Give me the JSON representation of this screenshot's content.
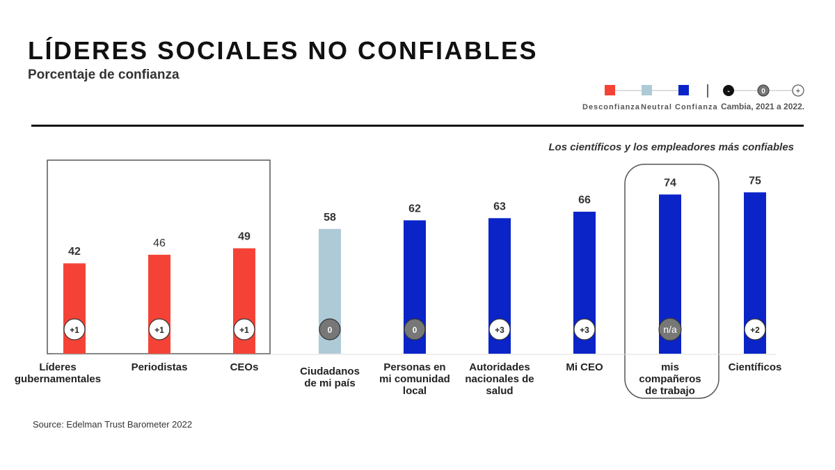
{
  "title": "LÍDERES SOCIALES NO CONFIABLES",
  "subtitle": "Porcentaje de confianza",
  "note": "Los científicos y los empleadores más confiables",
  "source": "Source: Edelman Trust Barometer 2022",
  "legend": {
    "distrust": "Desconfianza",
    "neutral": "Neutral",
    "trust": "Confianza",
    "change": "Cambia, 2021 a 2022.",
    "change_markers": [
      "-",
      "0",
      "+"
    ]
  },
  "colors": {
    "distrust": "#f44336",
    "neutral": "#aecad6",
    "trust": "#0a24c8",
    "zero_badge": "#777777"
  },
  "chart_data": {
    "type": "bar",
    "title": "LÍDERES SOCIALES NO CONFIABLES",
    "ylabel": "Porcentaje de confianza",
    "ylim": [
      0,
      100
    ],
    "grid": false,
    "legend_position": "top-right",
    "categories": [
      [
        "Líderes",
        "gubernamentales"
      ],
      [
        "Periodistas"
      ],
      [
        "CEOs"
      ],
      [
        "Ciudadanos",
        "de mi país"
      ],
      [
        "Personas en",
        "mi comunidad",
        "local"
      ],
      [
        "Autoridades",
        "nacionales de",
        "salud"
      ],
      [
        "Mi CEO"
      ],
      [
        "mis",
        "compañeros",
        "de trabajo"
      ],
      [
        "Científicos"
      ]
    ],
    "values": [
      42,
      46,
      49,
      58,
      62,
      63,
      66,
      74,
      75
    ],
    "value_labels": [
      "42",
      "46",
      "49",
      "58",
      "62",
      "63",
      "66",
      "74",
      "75"
    ],
    "trust_level": [
      "distrust",
      "distrust",
      "distrust",
      "neutral",
      "trust",
      "trust",
      "trust",
      "trust",
      "trust"
    ],
    "change": [
      "+1",
      "+1",
      "+1",
      "0",
      "0",
      "+3",
      "+3",
      "n/a",
      "+2"
    ]
  }
}
